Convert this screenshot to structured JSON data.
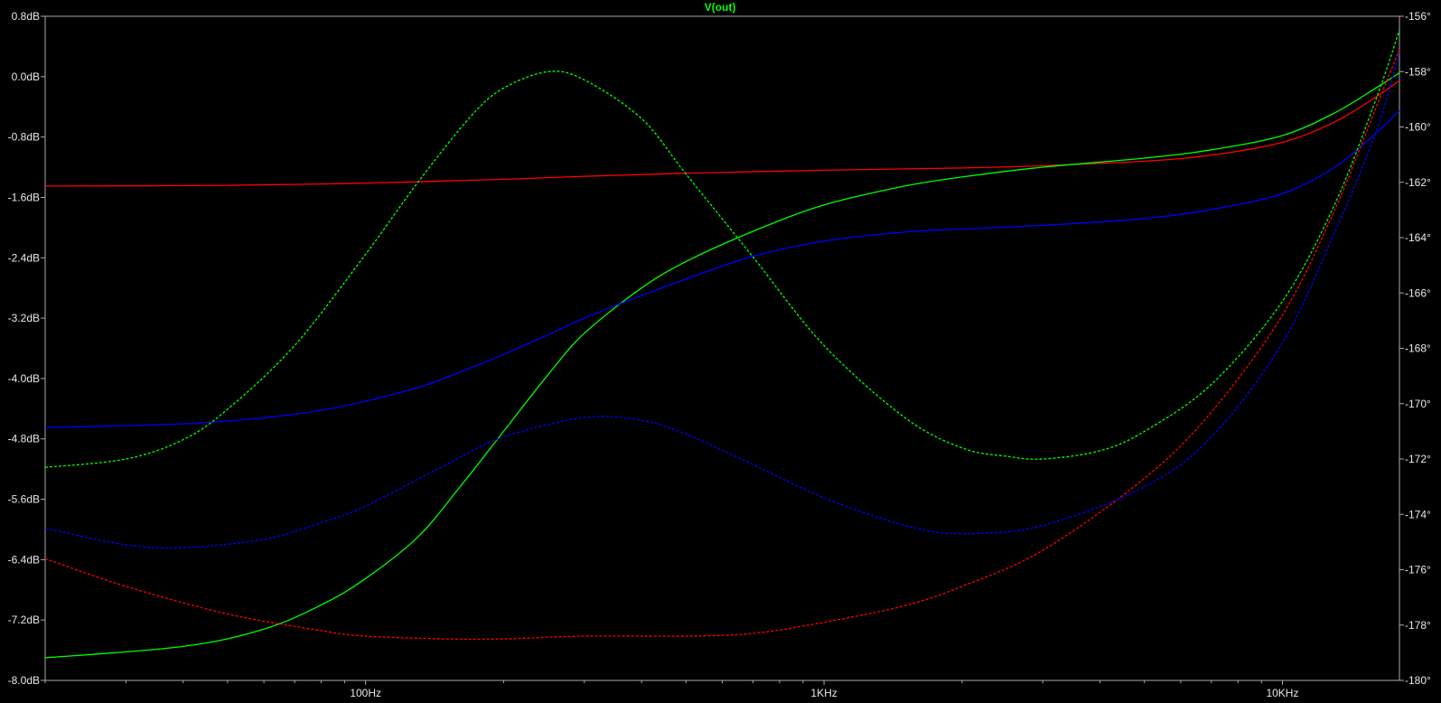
{
  "chart_data": {
    "type": "line",
    "title": "V(out)",
    "title_color": "#00ff00",
    "xscale": "log",
    "xlim": [
      20,
      18000
    ],
    "ylim_left": [
      -8.0,
      0.8
    ],
    "ylim_right": [
      -180,
      -156
    ],
    "x_ticks": [
      {
        "v": 100,
        "label": "100Hz"
      },
      {
        "v": 1000,
        "label": "1KHz"
      },
      {
        "v": 10000,
        "label": "10KHz"
      }
    ],
    "y_left_ticks": [
      {
        "v": 0.8,
        "label": "0.8dB"
      },
      {
        "v": 0.0,
        "label": "0.0dB"
      },
      {
        "v": -0.8,
        "label": "-0.8dB"
      },
      {
        "v": -1.6,
        "label": "-1.6dB"
      },
      {
        "v": -2.4,
        "label": "-2.4dB"
      },
      {
        "v": -3.2,
        "label": "-3.2dB"
      },
      {
        "v": -4.0,
        "label": "-4.0dB"
      },
      {
        "v": -4.8,
        "label": "-4.8dB"
      },
      {
        "v": -5.6,
        "label": "-5.6dB"
      },
      {
        "v": -6.4,
        "label": "-6.4dB"
      },
      {
        "v": -7.2,
        "label": "-7.2dB"
      },
      {
        "v": -8.0,
        "label": "-8.0dB"
      }
    ],
    "y_right_ticks": [
      {
        "v": -156,
        "label": "-156°"
      },
      {
        "v": -158,
        "label": "-158°"
      },
      {
        "v": -160,
        "label": "-160°"
      },
      {
        "v": -162,
        "label": "-162°"
      },
      {
        "v": -164,
        "label": "-164°"
      },
      {
        "v": -166,
        "label": "-166°"
      },
      {
        "v": -168,
        "label": "-168°"
      },
      {
        "v": -170,
        "label": "-170°"
      },
      {
        "v": -172,
        "label": "-172°"
      },
      {
        "v": -174,
        "label": "-174°"
      },
      {
        "v": -176,
        "label": "-176°"
      },
      {
        "v": -178,
        "label": "-178°"
      },
      {
        "v": -180,
        "label": "-180°"
      }
    ],
    "colors": {
      "background": "#000000",
      "axes": "#aaaaaa",
      "tick_text": "#e8e8e8"
    },
    "series": [
      {
        "color": "#ff0000",
        "style": "solid",
        "axis": "left",
        "x": [
          20,
          50,
          100,
          200,
          300,
          500,
          1000,
          2000,
          3000,
          5000,
          7000,
          10000,
          13000,
          16000,
          18000
        ],
        "y": [
          -1.45,
          -1.44,
          -1.41,
          -1.36,
          -1.32,
          -1.28,
          -1.24,
          -1.21,
          -1.18,
          -1.12,
          -1.04,
          -0.87,
          -0.6,
          -0.27,
          -0.05
        ]
      },
      {
        "color": "#00ff00",
        "style": "solid",
        "axis": "left",
        "x": [
          20,
          40,
          60,
          80,
          100,
          130,
          160,
          200,
          250,
          300,
          400,
          500,
          700,
          1000,
          1500,
          2000,
          3000,
          5000,
          7000,
          10000,
          13000,
          16000,
          18000
        ],
        "y": [
          -7.7,
          -7.55,
          -7.32,
          -7.0,
          -6.65,
          -6.1,
          -5.45,
          -4.7,
          -3.95,
          -3.4,
          -2.8,
          -2.45,
          -2.05,
          -1.7,
          -1.45,
          -1.33,
          -1.2,
          -1.08,
          -0.97,
          -0.78,
          -0.48,
          -0.15,
          0.05
        ]
      },
      {
        "color": "#0000ff",
        "style": "solid",
        "axis": "left",
        "x": [
          20,
          40,
          60,
          80,
          100,
          130,
          160,
          200,
          250,
          300,
          400,
          500,
          700,
          1000,
          1500,
          2000,
          3000,
          5000,
          7000,
          10000,
          13000,
          16000,
          18000
        ],
        "y": [
          -4.65,
          -4.6,
          -4.52,
          -4.42,
          -4.3,
          -4.12,
          -3.92,
          -3.68,
          -3.42,
          -3.2,
          -2.9,
          -2.68,
          -2.38,
          -2.18,
          -2.06,
          -2.02,
          -1.97,
          -1.88,
          -1.76,
          -1.55,
          -1.2,
          -0.75,
          -0.45
        ]
      },
      {
        "color": "#ff0000",
        "style": "dashed",
        "axis": "right",
        "x": [
          20,
          30,
          50,
          80,
          100,
          150,
          200,
          300,
          500,
          700,
          1000,
          1500,
          2000,
          3000,
          5000,
          7000,
          10000,
          13000,
          16000,
          18000
        ],
        "y": [
          -175.6,
          -176.6,
          -177.6,
          -178.2,
          -178.4,
          -178.5,
          -178.5,
          -178.4,
          -178.4,
          -178.3,
          -177.9,
          -177.3,
          -176.6,
          -175.3,
          -172.7,
          -170.3,
          -166.8,
          -163.0,
          -159.3,
          -157.2
        ]
      },
      {
        "color": "#00ff00",
        "style": "dashed",
        "axis": "right",
        "x": [
          20,
          30,
          40,
          50,
          70,
          100,
          130,
          170,
          200,
          250,
          300,
          400,
          500,
          700,
          1000,
          1500,
          2000,
          2500,
          3000,
          4000,
          5000,
          7000,
          10000,
          13000,
          16000,
          18000
        ],
        "y": [
          -172.3,
          -172.0,
          -171.3,
          -170.2,
          -167.9,
          -164.6,
          -162.0,
          -159.6,
          -158.6,
          -158.0,
          -158.3,
          -159.7,
          -161.7,
          -164.7,
          -167.9,
          -170.5,
          -171.6,
          -171.9,
          -172.0,
          -171.7,
          -171.0,
          -169.3,
          -166.3,
          -162.8,
          -159.0,
          -156.5
        ]
      },
      {
        "color": "#0000ff",
        "style": "dashed",
        "axis": "right",
        "x": [
          20,
          30,
          40,
          60,
          80,
          100,
          150,
          200,
          300,
          400,
          500,
          700,
          1000,
          1500,
          2000,
          3000,
          5000,
          7000,
          10000,
          13000,
          16000,
          18000
        ],
        "y": [
          -174.5,
          -175.1,
          -175.2,
          -174.9,
          -174.3,
          -173.7,
          -172.2,
          -171.2,
          -170.5,
          -170.6,
          -171.1,
          -172.2,
          -173.4,
          -174.4,
          -174.7,
          -174.4,
          -173.0,
          -171.2,
          -167.8,
          -163.8,
          -160.2,
          -157.3
        ]
      }
    ]
  }
}
